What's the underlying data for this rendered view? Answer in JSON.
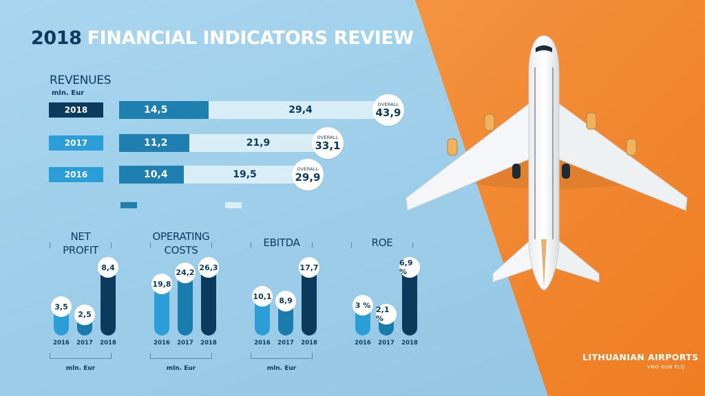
{
  "title_year": "2018",
  "title_text": "FINANCIAL INDICATORS REVIEW",
  "colors": {
    "navy": "#0a3b5c",
    "mid_blue": "#1f7fae",
    "light_bar": "#d9edf7",
    "bright_blue": "#2b9ed7",
    "orange": "#f28b36",
    "background": "#a7d3ec"
  },
  "logo": {
    "name": "LITHUANIAN AIRPORTS",
    "sub": "VNO KUN PLQ"
  },
  "chart_data": [
    {
      "type": "bar",
      "stacked": true,
      "orientation": "horizontal",
      "title": "REVENUES",
      "unit": "mln. Eur",
      "categories": [
        "2018",
        "2017",
        "2016"
      ],
      "series": [
        {
          "values": [
            14.5,
            11.2,
            10.4
          ]
        },
        {
          "values": [
            29.4,
            21.9,
            19.5
          ]
        }
      ],
      "totals": [
        43.9,
        33.1,
        29.9
      ],
      "total_label": "OVERALL",
      "legend": "bottom-left",
      "labels": {
        "dark": [
          "14,5",
          "11,2",
          "10,4"
        ],
        "light": [
          "29,4",
          "21,9",
          "19,5"
        ],
        "overall": [
          "43,9",
          "33,1",
          "29,9"
        ]
      }
    },
    {
      "type": "bar",
      "title": "NET PROFIT",
      "unit": "mln. Eur",
      "categories": [
        "2016",
        "2017",
        "2018"
      ],
      "values": [
        3.5,
        2.5,
        8.4
      ],
      "labels": [
        "3,5",
        "2,5",
        "8,4"
      ]
    },
    {
      "type": "bar",
      "title": "OPERATING COSTS",
      "unit": "mln. Eur",
      "categories": [
        "2016",
        "2017",
        "2018"
      ],
      "values": [
        19.8,
        24.2,
        26.3
      ],
      "labels": [
        "19,8",
        "24,2",
        "26,3"
      ]
    },
    {
      "type": "bar",
      "title": "EBITDA",
      "unit": "mln. Eur",
      "categories": [
        "2016",
        "2017",
        "2018"
      ],
      "values": [
        10.1,
        8.9,
        17.7
      ],
      "labels": [
        "10,1",
        "8,9",
        "17,7"
      ]
    },
    {
      "type": "bar",
      "title": "ROE",
      "unit": "%",
      "categories": [
        "2016",
        "2017",
        "2018"
      ],
      "values": [
        3,
        2.1,
        6.9
      ],
      "labels": [
        "3 %",
        "2,1 %",
        "6,9 %"
      ]
    }
  ],
  "small_titles": [
    [
      "NET",
      "PROFIT"
    ],
    [
      "OPERATING",
      "COSTS"
    ],
    [
      "EBITDA"
    ],
    [
      "ROE"
    ]
  ],
  "small_units": [
    "mln. Eur",
    "mln. Eur",
    "mln. Eur",
    ""
  ]
}
